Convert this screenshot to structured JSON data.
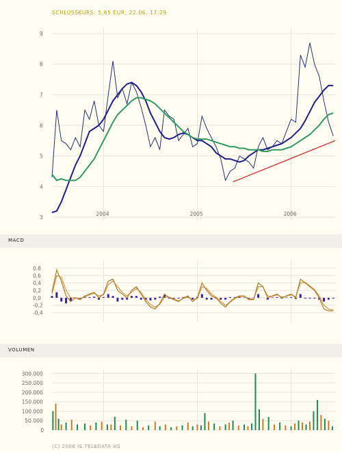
{
  "header": {
    "quote": "SCHLUSSKURS: 5,65 EUR, 22.06. 17:29"
  },
  "panels": {
    "macd_label": "MACD",
    "volume_label": "VOLUMEN"
  },
  "footer": {
    "copyright": "(C) 2006 IS.TELEDATA AG"
  },
  "colors": {
    "price": "#1F2F7A",
    "ma_fast": "#1C1C8A",
    "ma_slow": "#2E9A5E",
    "trend": "#D02020",
    "macd": "#B07A20",
    "signal": "#C07B2A",
    "hist": "#3A1FA0",
    "vol_green": "#1F8A50",
    "vol_orange": "#D07A20",
    "grid": "#E4E4DA"
  },
  "chart_data": [
    {
      "type": "line",
      "title": "",
      "x_range": [
        2003.45,
        2006.47
      ],
      "ylim": [
        3,
        9
      ],
      "y_ticks": [
        "3",
        "4",
        "5",
        "6",
        "7",
        "8",
        "9"
      ],
      "x_tick_values": [
        2004,
        2005,
        2006
      ],
      "x_ticks": [
        "2004",
        "2005",
        "2006"
      ],
      "grid": true,
      "series": [
        {
          "role": "price",
          "x": [
            2003.45,
            2003.5,
            2003.55,
            2003.6,
            2003.65,
            2003.7,
            2003.75,
            2003.8,
            2003.85,
            2003.9,
            2003.95,
            2004.0,
            2004.05,
            2004.1,
            2004.15,
            2004.2,
            2004.25,
            2004.3,
            2004.35,
            2004.4,
            2004.45,
            2004.5,
            2004.55,
            2004.6,
            2004.65,
            2004.7,
            2004.75,
            2004.8,
            2004.85,
            2004.9,
            2004.95,
            2005.0,
            2005.05,
            2005.1,
            2005.15,
            2005.2,
            2005.25,
            2005.3,
            2005.35,
            2005.4,
            2005.45,
            2005.5,
            2005.55,
            2005.6,
            2005.65,
            2005.7,
            2005.75,
            2005.8,
            2005.85,
            2005.9,
            2005.95,
            2006.0,
            2006.05,
            2006.1,
            2006.15,
            2006.2,
            2006.25,
            2006.3,
            2006.35,
            2006.4,
            2006.45
          ],
          "values": [
            4.3,
            6.5,
            5.5,
            5.4,
            5.2,
            5.6,
            5.3,
            6.5,
            6.2,
            6.8,
            6.0,
            5.8,
            7.0,
            8.1,
            6.9,
            7.2,
            6.7,
            7.4,
            7.1,
            6.6,
            6.0,
            5.3,
            5.6,
            5.2,
            6.5,
            6.3,
            6.2,
            5.5,
            5.7,
            5.9,
            5.3,
            5.4,
            6.3,
            5.9,
            5.6,
            5.3,
            4.9,
            4.2,
            4.5,
            4.6,
            5.0,
            4.9,
            4.8,
            4.6,
            5.3,
            5.6,
            5.2,
            5.3,
            5.5,
            5.4,
            5.8,
            6.2,
            6.1,
            8.3,
            7.9,
            8.7,
            8.0,
            7.6,
            6.8,
            6.1,
            5.65
          ]
        },
        {
          "role": "ma_fast",
          "x": [
            2003.45,
            2003.5,
            2003.55,
            2003.6,
            2003.65,
            2003.7,
            2003.75,
            2003.8,
            2003.85,
            2003.9,
            2003.95,
            2004.0,
            2004.05,
            2004.1,
            2004.15,
            2004.2,
            2004.25,
            2004.3,
            2004.35,
            2004.4,
            2004.45,
            2004.5,
            2004.55,
            2004.6,
            2004.65,
            2004.7,
            2004.75,
            2004.8,
            2004.85,
            2004.9,
            2004.95,
            2005.0,
            2005.05,
            2005.1,
            2005.15,
            2005.2,
            2005.25,
            2005.3,
            2005.35,
            2005.4,
            2005.45,
            2005.5,
            2005.55,
            2005.6,
            2005.65,
            2005.7,
            2005.75,
            2005.8,
            2005.85,
            2005.9,
            2005.95,
            2006.0,
            2006.05,
            2006.1,
            2006.15,
            2006.2,
            2006.25,
            2006.3,
            2006.35,
            2006.4,
            2006.45
          ],
          "values": [
            3.15,
            3.2,
            3.5,
            3.9,
            4.3,
            4.7,
            5.0,
            5.4,
            5.8,
            5.9,
            6.0,
            6.2,
            6.5,
            6.8,
            7.0,
            7.2,
            7.35,
            7.4,
            7.3,
            7.1,
            6.8,
            6.4,
            6.1,
            5.8,
            5.6,
            5.55,
            5.6,
            5.7,
            5.75,
            5.7,
            5.6,
            5.5,
            5.5,
            5.4,
            5.3,
            5.1,
            5.0,
            4.9,
            4.9,
            4.85,
            4.8,
            4.85,
            5.0,
            5.1,
            5.2,
            5.2,
            5.25,
            5.3,
            5.35,
            5.4,
            5.5,
            5.6,
            5.75,
            5.9,
            6.15,
            6.45,
            6.75,
            6.95,
            7.15,
            7.3,
            7.3
          ]
        },
        {
          "role": "ma_slow",
          "x": [
            2003.45,
            2003.5,
            2003.55,
            2003.6,
            2003.65,
            2003.7,
            2003.75,
            2003.8,
            2003.85,
            2003.9,
            2003.95,
            2004.0,
            2004.05,
            2004.1,
            2004.15,
            2004.2,
            2004.25,
            2004.3,
            2004.35,
            2004.4,
            2004.45,
            2004.5,
            2004.55,
            2004.6,
            2004.65,
            2004.7,
            2004.75,
            2004.8,
            2004.85,
            2004.9,
            2004.95,
            2005.0,
            2005.05,
            2005.1,
            2005.15,
            2005.2,
            2005.25,
            2005.3,
            2005.35,
            2005.4,
            2005.45,
            2005.5,
            2005.55,
            2005.6,
            2005.65,
            2005.7,
            2005.75,
            2005.8,
            2005.85,
            2005.9,
            2005.95,
            2006.0,
            2006.05,
            2006.1,
            2006.15,
            2006.2,
            2006.25,
            2006.3,
            2006.35,
            2006.4,
            2006.45
          ],
          "values": [
            4.4,
            4.2,
            4.25,
            4.2,
            4.2,
            4.2,
            4.3,
            4.5,
            4.7,
            4.9,
            5.2,
            5.5,
            5.8,
            6.1,
            6.35,
            6.5,
            6.65,
            6.8,
            6.9,
            6.9,
            6.85,
            6.8,
            6.7,
            6.55,
            6.4,
            6.25,
            6.1,
            5.95,
            5.8,
            5.7,
            5.6,
            5.55,
            5.55,
            5.55,
            5.5,
            5.45,
            5.4,
            5.35,
            5.3,
            5.3,
            5.25,
            5.25,
            5.2,
            5.2,
            5.2,
            5.15,
            5.15,
            5.2,
            5.2,
            5.2,
            5.25,
            5.3,
            5.4,
            5.5,
            5.6,
            5.7,
            5.85,
            6.0,
            6.2,
            6.35,
            6.4
          ]
        },
        {
          "role": "trend",
          "x": [
            2005.38,
            2006.47
          ],
          "values": [
            4.15,
            5.5
          ]
        }
      ]
    },
    {
      "type": "line",
      "title": "",
      "x_range": [
        2003.45,
        2006.47
      ],
      "ylim": [
        -0.5,
        0.9
      ],
      "y_tick_values": [
        0.8,
        0.6,
        0.4,
        0.2,
        0.0,
        -0.2,
        -0.4
      ],
      "y_ticks": [
        "0,8",
        "0,6",
        "0,4",
        "0,2",
        "0,0",
        "-0,2",
        "-0,4"
      ],
      "grid": true,
      "series": [
        {
          "role": "macd",
          "x": [
            2003.45,
            2003.5,
            2003.55,
            2003.6,
            2003.65,
            2003.7,
            2003.75,
            2003.8,
            2003.85,
            2003.9,
            2003.95,
            2004.0,
            2004.05,
            2004.1,
            2004.15,
            2004.2,
            2004.25,
            2004.3,
            2004.35,
            2004.4,
            2004.45,
            2004.5,
            2004.55,
            2004.6,
            2004.65,
            2004.7,
            2004.75,
            2004.8,
            2004.85,
            2004.9,
            2004.95,
            2005.0,
            2005.05,
            2005.1,
            2005.15,
            2005.2,
            2005.25,
            2005.3,
            2005.35,
            2005.4,
            2005.45,
            2005.5,
            2005.55,
            2005.6,
            2005.65,
            2005.7,
            2005.75,
            2005.8,
            2005.85,
            2005.9,
            2005.95,
            2006.0,
            2006.05,
            2006.1,
            2006.15,
            2006.2,
            2006.25,
            2006.3,
            2006.35,
            2006.4,
            2006.45
          ],
          "values": [
            0.15,
            0.75,
            0.45,
            0.05,
            -0.1,
            0.0,
            -0.05,
            0.05,
            0.1,
            0.15,
            0.0,
            0.1,
            0.45,
            0.5,
            0.2,
            0.1,
            0.0,
            0.2,
            0.3,
            0.1,
            -0.1,
            -0.25,
            -0.3,
            -0.15,
            0.1,
            0.0,
            -0.05,
            -0.1,
            0.0,
            0.05,
            -0.1,
            0.0,
            0.4,
            0.2,
            0.05,
            0.0,
            -0.15,
            -0.25,
            -0.1,
            0.0,
            0.05,
            0.05,
            -0.05,
            -0.05,
            0.4,
            0.3,
            0.0,
            0.05,
            0.1,
            0.0,
            0.05,
            0.1,
            0.0,
            0.5,
            0.4,
            0.3,
            0.2,
            0.0,
            -0.3,
            -0.35,
            -0.35
          ]
        },
        {
          "role": "signal",
          "x": [
            2003.45,
            2003.5,
            2003.55,
            2003.6,
            2003.65,
            2003.7,
            2003.75,
            2003.8,
            2003.85,
            2003.9,
            2003.95,
            2004.0,
            2004.05,
            2004.1,
            2004.15,
            2004.2,
            2004.25,
            2004.3,
            2004.35,
            2004.4,
            2004.45,
            2004.5,
            2004.55,
            2004.6,
            2004.65,
            2004.7,
            2004.75,
            2004.8,
            2004.85,
            2004.9,
            2004.95,
            2005.0,
            2005.05,
            2005.1,
            2005.15,
            2005.2,
            2005.25,
            2005.3,
            2005.35,
            2005.4,
            2005.45,
            2005.5,
            2005.55,
            2005.6,
            2005.65,
            2005.7,
            2005.75,
            2005.8,
            2005.85,
            2005.9,
            2005.95,
            2006.0,
            2006.05,
            2006.1,
            2006.15,
            2006.2,
            2006.25,
            2006.3,
            2006.35,
            2006.4,
            2006.45
          ],
          "values": [
            0.1,
            0.6,
            0.55,
            0.2,
            0.0,
            0.0,
            -0.02,
            0.02,
            0.08,
            0.12,
            0.05,
            0.08,
            0.35,
            0.45,
            0.3,
            0.15,
            0.05,
            0.15,
            0.25,
            0.15,
            -0.05,
            -0.18,
            -0.25,
            -0.18,
            0.02,
            0.02,
            -0.03,
            -0.08,
            -0.02,
            0.02,
            -0.05,
            -0.02,
            0.3,
            0.25,
            0.1,
            0.02,
            -0.1,
            -0.2,
            -0.12,
            -0.02,
            0.03,
            0.04,
            -0.02,
            -0.04,
            0.3,
            0.3,
            0.05,
            0.04,
            0.08,
            0.02,
            0.04,
            0.08,
            0.03,
            0.4,
            0.42,
            0.32,
            0.22,
            0.05,
            -0.2,
            -0.3,
            -0.33
          ]
        }
      ]
    },
    {
      "type": "bar",
      "title": "",
      "x_range": [
        2003.45,
        2006.47
      ],
      "ylim": [
        0,
        330000
      ],
      "y_tick_values": [
        300000,
        250000,
        200000,
        150000,
        100000,
        50000,
        0
      ],
      "y_ticks": [
        "300.000",
        "250.000",
        "200.000",
        "150.000",
        "100.000",
        "50.000",
        "0"
      ],
      "grid": true,
      "x": [
        2003.46,
        2003.49,
        2003.52,
        2003.55,
        2003.6,
        2003.66,
        2003.72,
        2003.8,
        2003.86,
        2003.92,
        2003.98,
        2004.04,
        2004.08,
        2004.12,
        2004.18,
        2004.24,
        2004.3,
        2004.36,
        2004.42,
        2004.48,
        2004.55,
        2004.6,
        2004.66,
        2004.72,
        2004.78,
        2004.84,
        2004.9,
        2004.95,
        2005.0,
        2005.04,
        2005.08,
        2005.12,
        2005.18,
        2005.24,
        2005.3,
        2005.34,
        2005.38,
        2005.44,
        2005.5,
        2005.54,
        2005.58,
        2005.62,
        2005.66,
        2005.7,
        2005.76,
        2005.82,
        2005.88,
        2005.94,
        2006.0,
        2006.04,
        2006.08,
        2006.12,
        2006.16,
        2006.2,
        2006.24,
        2006.28,
        2006.32,
        2006.36,
        2006.4,
        2006.44
      ],
      "values": [
        100000,
        140000,
        60000,
        30000,
        40000,
        55000,
        30000,
        35000,
        25000,
        40000,
        45000,
        30000,
        30000,
        70000,
        25000,
        55000,
        20000,
        50000,
        15000,
        25000,
        45000,
        20000,
        30000,
        15000,
        20000,
        25000,
        40000,
        20000,
        30000,
        25000,
        90000,
        45000,
        35000,
        20000,
        30000,
        40000,
        50000,
        25000,
        30000,
        20000,
        35000,
        300000,
        110000,
        60000,
        70000,
        30000,
        40000,
        25000,
        20000,
        35000,
        50000,
        40000,
        30000,
        45000,
        100000,
        160000,
        80000,
        60000,
        50000,
        20000
      ],
      "colors": [
        "green",
        "orange",
        "green",
        "orange",
        "green",
        "orange",
        "green",
        "green",
        "orange",
        "green",
        "orange",
        "green",
        "orange",
        "green",
        "orange",
        "green",
        "orange",
        "green",
        "orange",
        "green",
        "orange",
        "green",
        "orange",
        "green",
        "orange",
        "green",
        "orange",
        "green",
        "orange",
        "green",
        "green",
        "orange",
        "green",
        "orange",
        "green",
        "orange",
        "green",
        "orange",
        "green",
        "orange",
        "green",
        "green",
        "green",
        "orange",
        "green",
        "orange",
        "green",
        "orange",
        "green",
        "orange",
        "green",
        "orange",
        "green",
        "orange",
        "green",
        "green",
        "orange",
        "green",
        "orange",
        "green"
      ]
    }
  ]
}
